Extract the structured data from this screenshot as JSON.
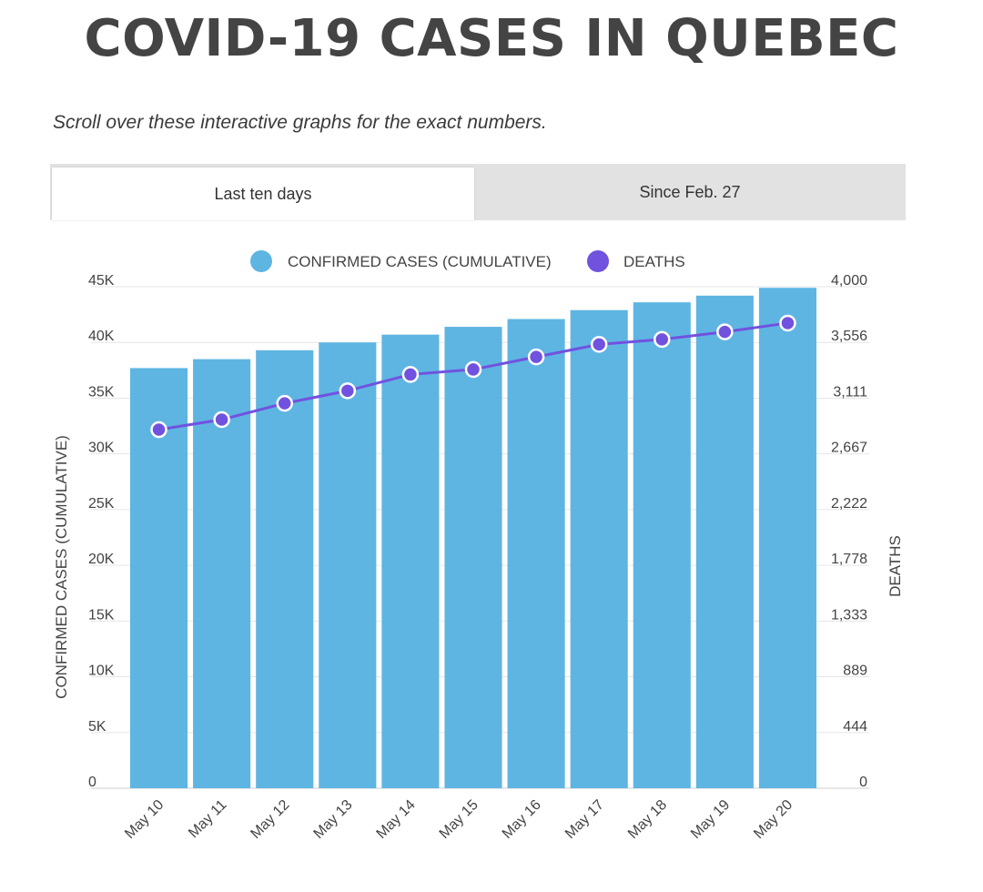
{
  "title": "COVID-19 CASES IN QUEBEC",
  "subtitle": "Scroll over these interactive graphs for the exact numbers.",
  "tabs": [
    {
      "label": "Last ten days",
      "active": true
    },
    {
      "label": "Since Feb. 27",
      "active": false
    }
  ],
  "colors": {
    "bars": "#5eb5e2",
    "line": "#7152df",
    "grid": "#e6e6e6"
  },
  "chart_data": {
    "type": "bar",
    "title": "",
    "categories": [
      "May 10",
      "May 11",
      "May 12",
      "May 13",
      "May 14",
      "May 15",
      "May 16",
      "May 17",
      "May 18",
      "May 19",
      "May 20"
    ],
    "series": [
      {
        "name": "CONFIRMED CASES (CUMULATIVE)",
        "type": "bar",
        "axis": "left",
        "values": [
          37700,
          38500,
          39300,
          40000,
          40700,
          41400,
          42100,
          42900,
          43600,
          44200,
          44900
        ]
      },
      {
        "name": "DEATHS",
        "type": "line",
        "axis": "right",
        "values": [
          2860,
          2940,
          3070,
          3170,
          3300,
          3340,
          3440,
          3540,
          3580,
          3640,
          3710
        ]
      }
    ],
    "legend": [
      "CONFIRMED CASES (CUMULATIVE)",
      "DEATHS"
    ],
    "ylabel_left": "CONFIRMED CASES (CUMULATIVE)",
    "ylabel_right": "DEATHS",
    "ylim_left": [
      0,
      45000
    ],
    "ylim_right": [
      0,
      4000
    ],
    "left_ticks": [
      "0",
      "5K",
      "10K",
      "15K",
      "20K",
      "25K",
      "30K",
      "35K",
      "40K",
      "45K"
    ],
    "right_ticks": [
      "0",
      "444",
      "889",
      "1,333",
      "1,778",
      "2,222",
      "2,667",
      "3,111",
      "3,556",
      "4,000"
    ]
  }
}
